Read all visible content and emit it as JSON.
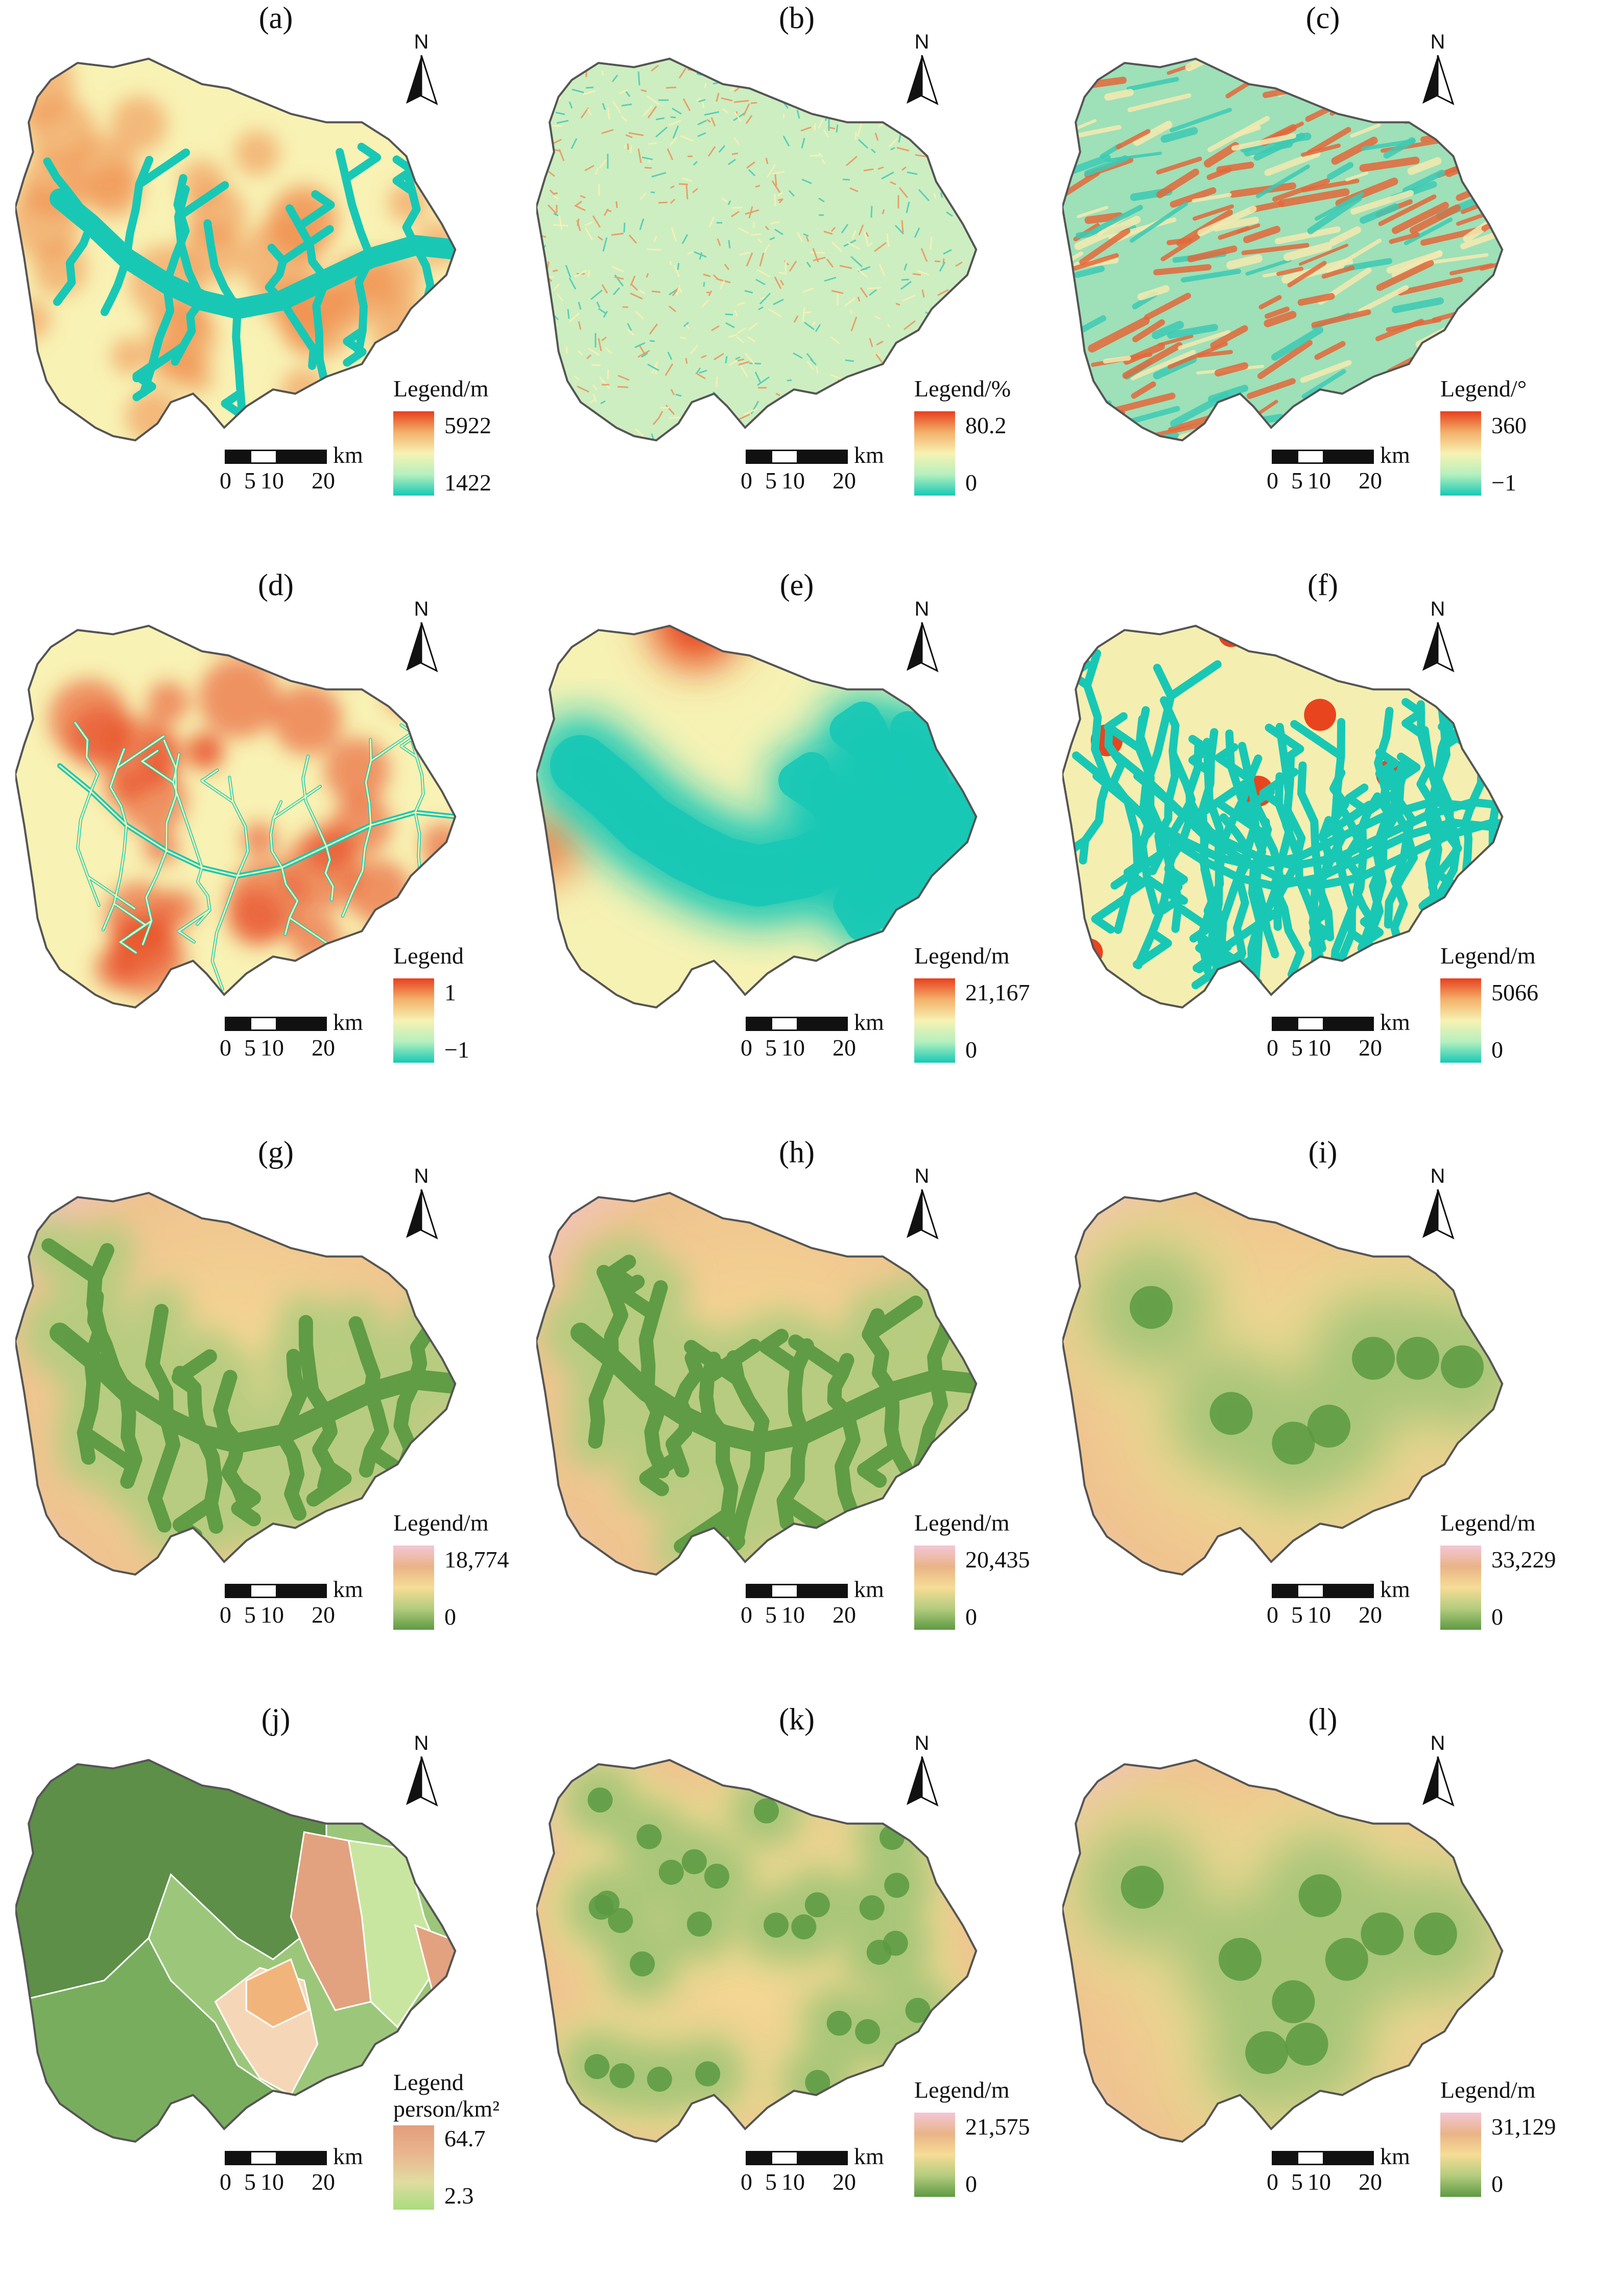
{
  "panels": [
    {
      "label": "(a)",
      "legend_title": "Legend/m",
      "legend_title2": "",
      "max": "5922",
      "min": "1422",
      "stops": [
        "#17c9b6",
        "#b6f0be",
        "#f7f2b2",
        "#f3b16b",
        "#e8401e"
      ]
    },
    {
      "label": "(b)",
      "legend_title": "Legend/%",
      "legend_title2": "",
      "max": "80.2",
      "min": "0",
      "stops": [
        "#17c9b6",
        "#b6f0be",
        "#f7f2b2",
        "#f3b16b",
        "#e8401e"
      ]
    },
    {
      "label": "(c)",
      "legend_title": "Legend/°",
      "legend_title2": "",
      "max": "360",
      "min": "−1",
      "stops": [
        "#17c9b6",
        "#b6f0be",
        "#f7f2b2",
        "#f3b16b",
        "#e8401e"
      ]
    },
    {
      "label": "(d)",
      "legend_title": "Legend",
      "legend_title2": "",
      "max": "1",
      "min": "−1",
      "stops": [
        "#17c9b6",
        "#b6f0be",
        "#f7f2b2",
        "#f3b16b",
        "#e8401e"
      ]
    },
    {
      "label": "(e)",
      "legend_title": "Legend/m",
      "legend_title2": "",
      "max": "21,167",
      "min": "0",
      "stops": [
        "#17c9b6",
        "#b6f0be",
        "#f7f2b2",
        "#f3b16b",
        "#e8401e"
      ]
    },
    {
      "label": "(f)",
      "legend_title": "Legend/m",
      "legend_title2": "",
      "max": "5066",
      "min": "0",
      "stops": [
        "#17c9b6",
        "#b6f0be",
        "#f7f2b2",
        "#f3b16b",
        "#e8401e"
      ]
    },
    {
      "label": "(g)",
      "legend_title": "Legend/m",
      "legend_title2": "",
      "max": "18,774",
      "min": "0",
      "stops": [
        "#5e9a44",
        "#b3cc7e",
        "#f6dc96",
        "#e9b487",
        "#f3c6d7"
      ]
    },
    {
      "label": "(h)",
      "legend_title": "Legend/m",
      "legend_title2": "",
      "max": "20,435",
      "min": "0",
      "stops": [
        "#5e9a44",
        "#b3cc7e",
        "#f6dc96",
        "#e9b487",
        "#f3c6d7"
      ]
    },
    {
      "label": "(i)",
      "legend_title": "Legend/m",
      "legend_title2": "",
      "max": "33,229",
      "min": "0",
      "stops": [
        "#5e9a44",
        "#b3cc7e",
        "#f6dc96",
        "#e9b487",
        "#f3c6d7"
      ]
    },
    {
      "label": "(j)",
      "legend_title": "Legend",
      "legend_title2": "person/km²",
      "max": "64.7",
      "min": "2.3",
      "stops": [
        "#a8dd7e",
        "#e0dca0",
        "#e9b58f",
        "#e39d7c"
      ]
    },
    {
      "label": "(k)",
      "legend_title": "Legend/m",
      "legend_title2": "",
      "max": "21,575",
      "min": "0",
      "stops": [
        "#5e9a44",
        "#b3cc7e",
        "#f6dc96",
        "#e9b487",
        "#f3c6d7"
      ]
    },
    {
      "label": "(l)",
      "legend_title": "Legend/m",
      "legend_title2": "",
      "max": "31,129",
      "min": "0",
      "stops": [
        "#5e9a44",
        "#b3cc7e",
        "#f6dc96",
        "#e9b487",
        "#f3c6d7"
      ]
    }
  ],
  "north_label": "N",
  "scale": {
    "unit": "km",
    "ticks": [
      "0",
      "5",
      "10",
      "20"
    ]
  },
  "map_styles": {
    "boundary_color": "#555555",
    "a_colors": {
      "low": "#18c8b5",
      "mid": "#f8f2b4",
      "high": "#e8451f"
    },
    "green_colors": {
      "low": "#5b9a42",
      "mid": "#f6db95",
      "high": "#f2c4d5"
    },
    "j_zone_colors": [
      "#5d8f48",
      "#9cc77b",
      "#79ad5e",
      "#f5d7b8",
      "#f1b57c",
      "#e3a27f",
      "#c9e6a0"
    ]
  }
}
